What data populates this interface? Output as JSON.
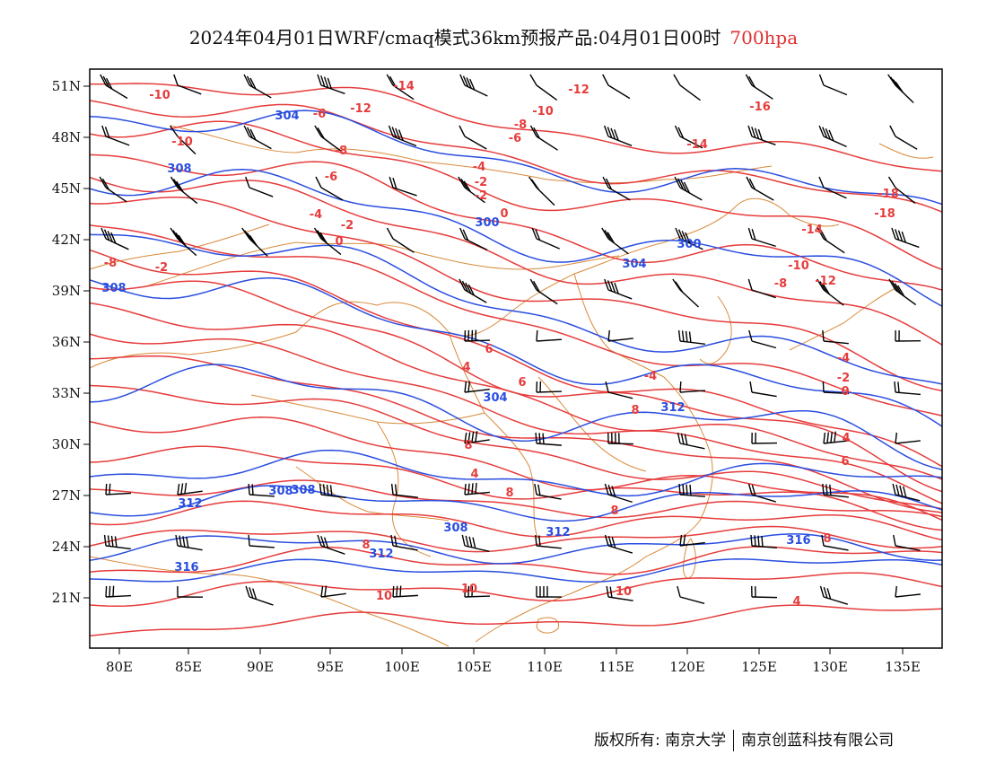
{
  "title": {
    "main": "2024年04月01日WRF/cmaq模式36km预报产品:04月01日00时",
    "level": "700hpa"
  },
  "colors": {
    "temperature": "#e63c3c",
    "height": "#2a4ee0",
    "border": "#d98a3a",
    "wind": "#000000"
  },
  "axes": {
    "lon_labels": [
      "80E",
      "85E",
      "90E",
      "95E",
      "100E",
      "105E",
      "110E",
      "115E",
      "120E",
      "125E",
      "130E",
      "135E"
    ],
    "lat_labels": [
      "21N",
      "24N",
      "27N",
      "30N",
      "33N",
      "36N",
      "39N",
      "42N",
      "45N",
      "48N",
      "51N"
    ]
  },
  "contour_labels": {
    "temperature": [
      "-10",
      "-10",
      "-14",
      "-12",
      "-8",
      "-10",
      "-8",
      "-12",
      "-16",
      "-14",
      "-6",
      "-6",
      "-8",
      "-4",
      "-2",
      "-2",
      "-4",
      "-2",
      "0",
      "-6",
      "-2",
      "0",
      "-4",
      "-18",
      "-18",
      "-14",
      "-10",
      "-8",
      "-12",
      "-4",
      "-2",
      "0",
      "4",
      "6",
      "8",
      "6",
      "4",
      "6",
      "8",
      "4",
      "8",
      "8",
      "10",
      "10",
      "10",
      "4",
      "8",
      "8"
    ],
    "height": [
      "304",
      "308",
      "300",
      "304",
      "300",
      "308",
      "304",
      "312",
      "308",
      "312",
      "312",
      "308",
      "308",
      "312",
      "316",
      "316"
    ]
  },
  "footer": {
    "copyright": "版权所有: 南京大学",
    "company": "南京创蓝科技有限公司"
  }
}
